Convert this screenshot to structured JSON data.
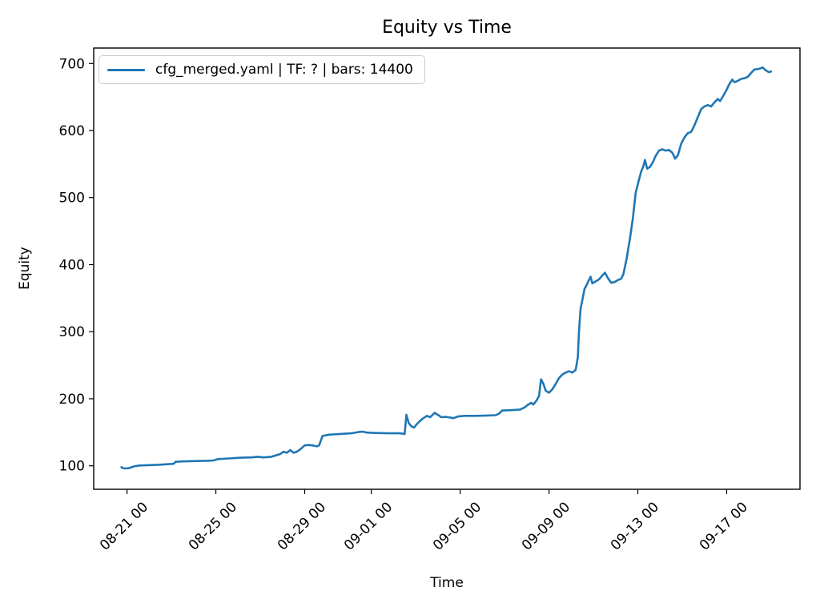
{
  "figure": {
    "title": "Equity vs Time",
    "xlabel": "Time",
    "ylabel": "Equity"
  },
  "legend": {
    "entries": [
      {
        "label": "cfg_merged.yaml | TF: ? | bars: 14400",
        "color": "#1f77b4"
      }
    ],
    "position": "upper left"
  },
  "colors": {
    "line": "#1f77b4",
    "axis": "#000000",
    "legend_border": "#cccccc",
    "background": "#ffffff"
  },
  "chart_data": {
    "type": "line",
    "title": "Equity vs Time",
    "xlabel": "Time",
    "ylabel": "Equity",
    "grid": false,
    "legend_position": "upper left",
    "x_unit": "days since 08-20 00:00",
    "xlim": [
      -0.5,
      31.3
    ],
    "ylim": [
      65,
      723
    ],
    "y_ticks": [
      100,
      200,
      300,
      400,
      500,
      600,
      700
    ],
    "x_ticks": [
      {
        "x": 1,
        "label": "08-21 00"
      },
      {
        "x": 5,
        "label": "08-25 00"
      },
      {
        "x": 9,
        "label": "08-29 00"
      },
      {
        "x": 12,
        "label": "09-01 00"
      },
      {
        "x": 16,
        "label": "09-05 00"
      },
      {
        "x": 20,
        "label": "09-09 00"
      },
      {
        "x": 24,
        "label": "09-13 00"
      },
      {
        "x": 28,
        "label": "09-17 00"
      }
    ],
    "series": [
      {
        "name": "cfg_merged.yaml | TF: ? | bars: 14400",
        "color": "#1f77b4",
        "points": [
          [
            0.75,
            98
          ],
          [
            0.8,
            96.5
          ],
          [
            0.95,
            96
          ],
          [
            1.1,
            96.5
          ],
          [
            1.3,
            99
          ],
          [
            1.55,
            100.5
          ],
          [
            1.9,
            101
          ],
          [
            2.4,
            101.5
          ],
          [
            2.9,
            102.5
          ],
          [
            3.1,
            103
          ],
          [
            3.18,
            106
          ],
          [
            3.5,
            106.5
          ],
          [
            4.0,
            107
          ],
          [
            4.6,
            107.5
          ],
          [
            4.9,
            108
          ],
          [
            5.1,
            110
          ],
          [
            5.6,
            111
          ],
          [
            6.1,
            112
          ],
          [
            6.6,
            112.5
          ],
          [
            6.9,
            113.5
          ],
          [
            7.15,
            112.5
          ],
          [
            7.5,
            113.5
          ],
          [
            7.9,
            117.5
          ],
          [
            8.05,
            121
          ],
          [
            8.2,
            119.5
          ],
          [
            8.35,
            123.5
          ],
          [
            8.5,
            119.5
          ],
          [
            8.65,
            121
          ],
          [
            8.8,
            124.5
          ],
          [
            9.0,
            130.5
          ],
          [
            9.15,
            131
          ],
          [
            9.35,
            130.5
          ],
          [
            9.55,
            129
          ],
          [
            9.65,
            130.5
          ],
          [
            9.72,
            137
          ],
          [
            9.8,
            144.5
          ],
          [
            10.1,
            146.5
          ],
          [
            10.6,
            147.5
          ],
          [
            11.1,
            148.5
          ],
          [
            11.45,
            150.5
          ],
          [
            11.6,
            151
          ],
          [
            11.8,
            149.5
          ],
          [
            12.2,
            149
          ],
          [
            12.8,
            148.5
          ],
          [
            13.3,
            148.5
          ],
          [
            13.5,
            147.5
          ],
          [
            13.58,
            176
          ],
          [
            13.68,
            164
          ],
          [
            13.8,
            159
          ],
          [
            13.92,
            157
          ],
          [
            14.1,
            164
          ],
          [
            14.3,
            170
          ],
          [
            14.5,
            174.5
          ],
          [
            14.65,
            172.5
          ],
          [
            14.85,
            179
          ],
          [
            15.0,
            176
          ],
          [
            15.15,
            172.5
          ],
          [
            15.35,
            173
          ],
          [
            15.55,
            172
          ],
          [
            15.7,
            171
          ],
          [
            15.9,
            173.5
          ],
          [
            16.2,
            174.5
          ],
          [
            16.7,
            174.5
          ],
          [
            17.2,
            175
          ],
          [
            17.6,
            175.5
          ],
          [
            17.75,
            178
          ],
          [
            17.9,
            182.5
          ],
          [
            18.3,
            183
          ],
          [
            18.7,
            184
          ],
          [
            18.9,
            187
          ],
          [
            19.05,
            191
          ],
          [
            19.2,
            194
          ],
          [
            19.3,
            191.5
          ],
          [
            19.45,
            198
          ],
          [
            19.55,
            204
          ],
          [
            19.64,
            229
          ],
          [
            19.75,
            222
          ],
          [
            19.85,
            212
          ],
          [
            20.0,
            209
          ],
          [
            20.15,
            214
          ],
          [
            20.3,
            222
          ],
          [
            20.45,
            231
          ],
          [
            20.6,
            236
          ],
          [
            20.75,
            239
          ],
          [
            20.9,
            241
          ],
          [
            21.05,
            239
          ],
          [
            21.2,
            243
          ],
          [
            21.3,
            262
          ],
          [
            21.35,
            300
          ],
          [
            21.42,
            334
          ],
          [
            21.5,
            347
          ],
          [
            21.6,
            364
          ],
          [
            21.7,
            370
          ],
          [
            21.87,
            382
          ],
          [
            21.95,
            372
          ],
          [
            22.1,
            375
          ],
          [
            22.25,
            378
          ],
          [
            22.4,
            384
          ],
          [
            22.52,
            388
          ],
          [
            22.65,
            380
          ],
          [
            22.8,
            373
          ],
          [
            22.95,
            374
          ],
          [
            23.1,
            377
          ],
          [
            23.25,
            379
          ],
          [
            23.35,
            386
          ],
          [
            23.5,
            410
          ],
          [
            23.65,
            440
          ],
          [
            23.78,
            470
          ],
          [
            23.9,
            507
          ],
          [
            24.03,
            524
          ],
          [
            24.15,
            539
          ],
          [
            24.25,
            547
          ],
          [
            24.32,
            556
          ],
          [
            24.42,
            543
          ],
          [
            24.55,
            546
          ],
          [
            24.68,
            553
          ],
          [
            24.8,
            562
          ],
          [
            24.95,
            570
          ],
          [
            25.1,
            572
          ],
          [
            25.25,
            570
          ],
          [
            25.4,
            571
          ],
          [
            25.55,
            567
          ],
          [
            25.68,
            558
          ],
          [
            25.8,
            563
          ],
          [
            25.95,
            580
          ],
          [
            26.1,
            590
          ],
          [
            26.25,
            596
          ],
          [
            26.4,
            598
          ],
          [
            26.55,
            608
          ],
          [
            26.7,
            620
          ],
          [
            26.85,
            632
          ],
          [
            27.0,
            636
          ],
          [
            27.15,
            638
          ],
          [
            27.3,
            636
          ],
          [
            27.45,
            642
          ],
          [
            27.6,
            647
          ],
          [
            27.7,
            644
          ],
          [
            27.85,
            652
          ],
          [
            28.0,
            661
          ],
          [
            28.1,
            668
          ],
          [
            28.25,
            676
          ],
          [
            28.35,
            672
          ],
          [
            28.5,
            674
          ],
          [
            28.65,
            677
          ],
          [
            28.8,
            678
          ],
          [
            28.95,
            680
          ],
          [
            29.1,
            686
          ],
          [
            29.25,
            691
          ],
          [
            29.45,
            692
          ],
          [
            29.62,
            694
          ],
          [
            29.75,
            690
          ],
          [
            29.9,
            687
          ],
          [
            30.0,
            688
          ]
        ]
      }
    ]
  }
}
